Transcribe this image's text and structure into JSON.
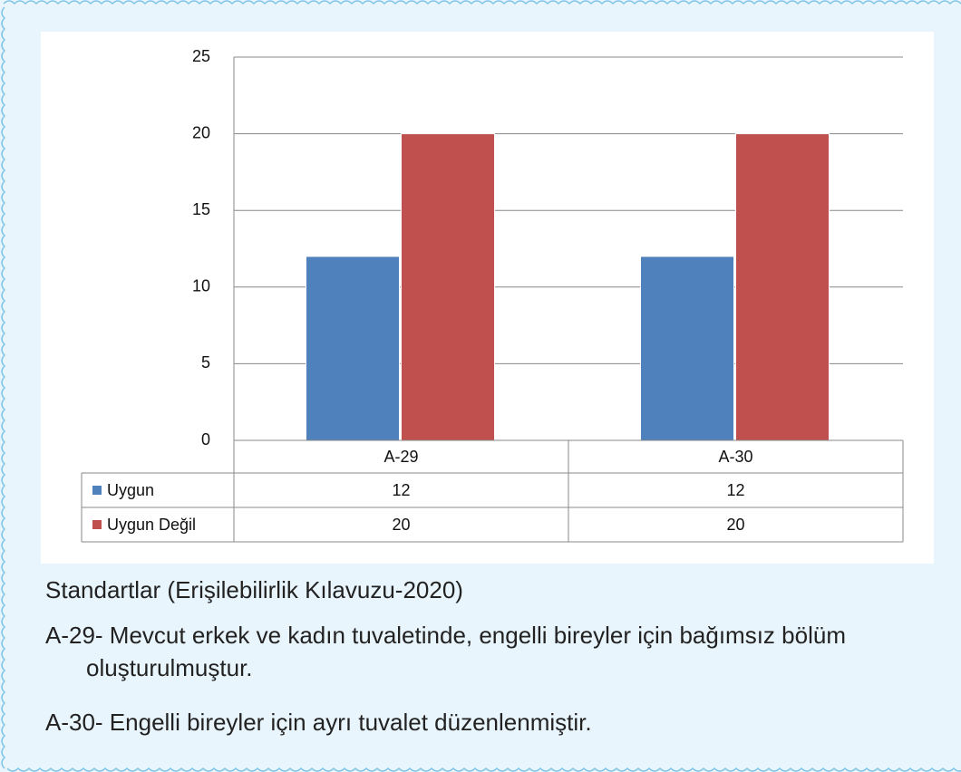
{
  "chart_data": {
    "type": "bar",
    "categories": [
      "A-29",
      "A-30"
    ],
    "series": [
      {
        "name": "Uygun",
        "color": "#4f81bd",
        "values": [
          12,
          12
        ]
      },
      {
        "name": "Uygun Değil",
        "color": "#c0504d",
        "values": [
          20,
          20
        ]
      }
    ],
    "ylim": [
      0,
      25
    ],
    "yticks": [
      0,
      5,
      10,
      15,
      20,
      25
    ],
    "grid": true,
    "data_table": true
  },
  "notes": {
    "heading": "Standartlar (Erişilebilirlik Kılavuzu-2020)",
    "items": [
      "A-29- Mevcut erkek ve kadın tuvaletinde, engelli bireyler için bağımsız bölüm oluşturulmuştur.",
      "A-30- Engelli bireyler için ayrı tuvalet düzenlenmiştir."
    ]
  }
}
